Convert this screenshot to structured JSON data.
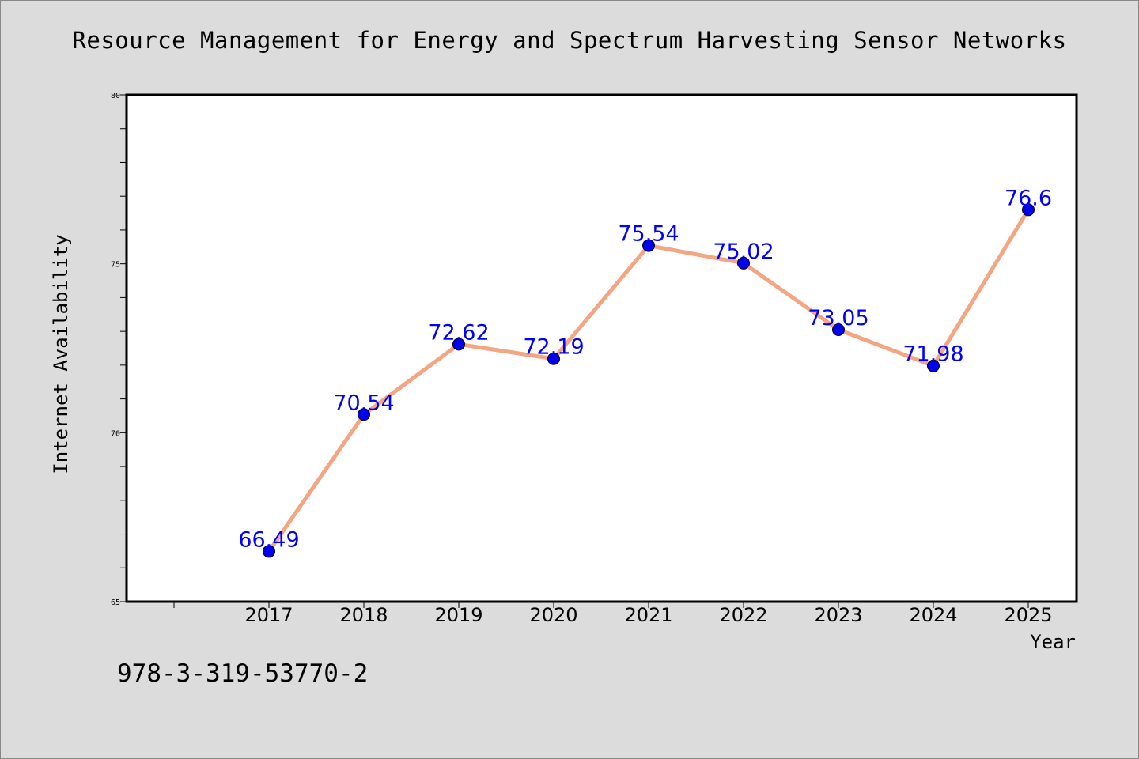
{
  "title": "Resource Management for Energy and Spectrum Harvesting Sensor Networks",
  "footer_text": "978-3-319-53770-2",
  "colors": {
    "background": "#dcdcdc",
    "plot_background": "#ffffff",
    "line": "#f4a582",
    "marker": "#0000ee",
    "data_label": "#0000ff"
  },
  "chart_data": {
    "type": "line",
    "title": "Resource Management for Energy and Spectrum Harvesting Sensor Networks",
    "xlabel": "Year",
    "ylabel": "Internet Availability",
    "categories": [
      "2017",
      "2018",
      "2019",
      "2020",
      "2021",
      "2022",
      "2023",
      "2024",
      "2025"
    ],
    "series": [
      {
        "values": [
          66.49,
          70.54,
          72.62,
          72.19,
          75.54,
          75.02,
          73.05,
          71.98,
          76.6
        ],
        "labels": [
          "66.49",
          "70.54",
          "72.62",
          "72.19",
          "75.54",
          "75.02",
          "73.05",
          "71.98",
          "76.6"
        ]
      }
    ],
    "ylim": [
      65,
      80
    ],
    "yticks": [
      "65",
      "70",
      "75",
      "80"
    ],
    "grid": false,
    "legend": "none"
  }
}
